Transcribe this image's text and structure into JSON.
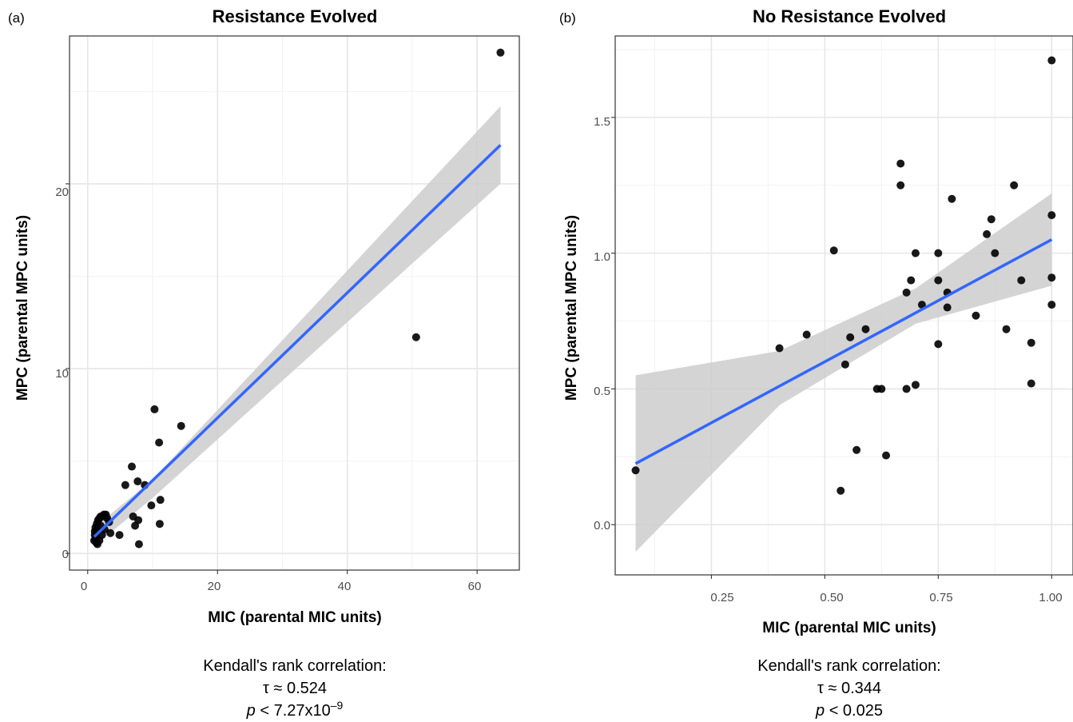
{
  "figure": {
    "panels": [
      {
        "label": "(a)",
        "title": "Resistance Evolved",
        "xlabel": "MIC (parental MIC units)",
        "ylabel": "MPC (parental MPC units)",
        "x_ticks": [
          "0",
          "20",
          "40",
          "60"
        ],
        "y_ticks": [
          "0",
          "10",
          "20"
        ],
        "stats": {
          "heading": "Kendall's rank correlation:",
          "tau": "τ ≈ 0.524",
          "p_prefix": "p",
          "p_rest": " < 7.27x10",
          "p_exp": "–9"
        }
      },
      {
        "label": "(b)",
        "title": "No Resistance Evolved",
        "xlabel": "MIC (parental MIC units)",
        "ylabel": "MPC (parental MPC units)",
        "x_ticks": [
          "0.25",
          "0.50",
          "0.75",
          "1.00"
        ],
        "y_ticks": [
          "0.0",
          "0.5",
          "1.0",
          "1.5"
        ],
        "stats": {
          "heading": "Kendall's rank correlation:",
          "tau": "τ ≈ 0.344",
          "p_prefix": "p",
          "p_rest": " < 0.025",
          "p_exp": ""
        }
      }
    ]
  },
  "chart_data": [
    {
      "type": "scatter",
      "title": "Resistance Evolved",
      "xlabel": "MIC (parental MIC units)",
      "ylabel": "MPC (parental MPC units)",
      "xlim": [
        -2.8,
        66.5
      ],
      "ylim": [
        -0.9,
        28.0
      ],
      "x_ticks": [
        0,
        20,
        40,
        60
      ],
      "y_ticks": [
        0,
        10,
        20
      ],
      "grid": true,
      "point_color": "#000000",
      "fit_color": "#3366ff",
      "band_color": "#cccccc",
      "points": [
        [
          63.6,
          27.1
        ],
        [
          50.6,
          11.7
        ],
        [
          10.3,
          7.8
        ],
        [
          14.4,
          6.9
        ],
        [
          11.0,
          6.0
        ],
        [
          6.8,
          4.7
        ],
        [
          7.7,
          3.9
        ],
        [
          5.8,
          3.7
        ],
        [
          8.8,
          3.7
        ],
        [
          11.2,
          2.9
        ],
        [
          9.8,
          2.6
        ],
        [
          7.0,
          2.0
        ],
        [
          7.8,
          1.8
        ],
        [
          7.3,
          1.5
        ],
        [
          11.1,
          1.6
        ],
        [
          4.9,
          1.0
        ],
        [
          7.9,
          0.5
        ],
        [
          3.5,
          1.1
        ],
        [
          3.3,
          1.7
        ],
        [
          3.0,
          1.9
        ],
        [
          2.8,
          2.1
        ],
        [
          2.5,
          2.1
        ],
        [
          2.2,
          2.0
        ],
        [
          2.0,
          2.0
        ],
        [
          1.8,
          1.9
        ],
        [
          1.6,
          1.8
        ],
        [
          1.4,
          1.6
        ],
        [
          1.2,
          1.4
        ],
        [
          1.1,
          1.2
        ],
        [
          1.1,
          1.0
        ],
        [
          1.2,
          0.8
        ],
        [
          1.3,
          0.6
        ],
        [
          1.5,
          0.5
        ],
        [
          1.8,
          0.7
        ],
        [
          2.2,
          1.0
        ],
        [
          2.6,
          1.3
        ],
        [
          2.0,
          1.5
        ],
        [
          1.5,
          1.2
        ],
        [
          1.3,
          0.9
        ],
        [
          1.0,
          0.7
        ]
      ],
      "fit": {
        "x": [
          1.0,
          63.6
        ],
        "y": [
          0.9,
          22.1
        ]
      },
      "ci": {
        "x": [
          1.0,
          10.0,
          63.6
        ],
        "upper": [
          1.4,
          4.0,
          24.2
        ],
        "lower": [
          0.4,
          3.0,
          20.0
        ]
      }
    },
    {
      "type": "scatter",
      "title": "No Resistance Evolved",
      "xlabel": "MIC (parental MIC units)",
      "ylabel": "MPC (parental MPC units)",
      "xlim": [
        0.038,
        1.047
      ],
      "ylim": [
        -0.185,
        1.8
      ],
      "x_ticks": [
        0.25,
        0.5,
        0.75,
        1.0
      ],
      "y_ticks": [
        0.0,
        0.5,
        1.0,
        1.5
      ],
      "grid": true,
      "point_color": "#000000",
      "fit_color": "#3366ff",
      "band_color": "#cccccc",
      "points": [
        [
          0.083,
          0.2
        ],
        [
          0.4,
          0.65
        ],
        [
          0.46,
          0.7
        ],
        [
          0.52,
          1.01
        ],
        [
          0.545,
          0.59
        ],
        [
          0.556,
          0.69
        ],
        [
          0.535,
          0.125
        ],
        [
          0.57,
          0.275
        ],
        [
          0.59,
          0.72
        ],
        [
          0.615,
          0.5
        ],
        [
          0.625,
          0.5
        ],
        [
          0.635,
          0.255
        ],
        [
          0.667,
          1.33
        ],
        [
          0.667,
          1.25
        ],
        [
          0.68,
          0.855
        ],
        [
          0.68,
          0.5
        ],
        [
          0.69,
          0.9
        ],
        [
          0.7,
          1.0
        ],
        [
          0.7,
          0.515
        ],
        [
          0.714,
          0.81
        ],
        [
          0.75,
          1.0
        ],
        [
          0.75,
          0.9
        ],
        [
          0.75,
          0.665
        ],
        [
          0.77,
          0.8
        ],
        [
          0.77,
          0.855
        ],
        [
          0.78,
          1.2
        ],
        [
          0.833,
          0.77
        ],
        [
          0.857,
          1.07
        ],
        [
          0.867,
          1.125
        ],
        [
          0.875,
          1.0
        ],
        [
          0.9,
          0.72
        ],
        [
          0.917,
          1.25
        ],
        [
          0.933,
          0.9
        ],
        [
          0.955,
          0.67
        ],
        [
          0.955,
          0.52
        ],
        [
          1.0,
          1.71
        ],
        [
          1.0,
          1.14
        ],
        [
          1.0,
          0.91
        ],
        [
          1.0,
          0.81
        ]
      ],
      "fit": {
        "x": [
          0.083,
          1.0
        ],
        "y": [
          0.225,
          1.05
        ]
      },
      "ci": {
        "x": [
          0.083,
          0.4,
          0.7,
          1.0
        ],
        "upper": [
          0.55,
          0.64,
          0.87,
          1.22
        ],
        "lower": [
          -0.1,
          0.44,
          0.74,
          0.88
        ]
      }
    }
  ]
}
